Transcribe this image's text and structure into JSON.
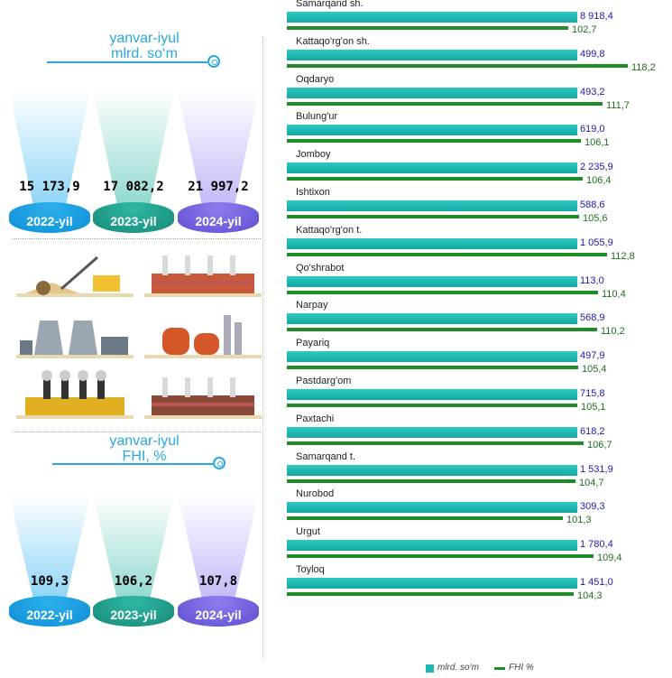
{
  "panels": {
    "top": {
      "title_line1": "yanvar-iyul",
      "title_line2": "mlrd. so‘m",
      "items": [
        {
          "year": "2022-yil",
          "value": "15 173,9"
        },
        {
          "year": "2023-yil",
          "value": "17 082,2"
        },
        {
          "year": "2024-yil",
          "value": "21 997,2"
        }
      ]
    },
    "bottom": {
      "title_line1": "yanvar-iyul",
      "title_line2": "FHI, %",
      "items": [
        {
          "year": "2022-yil",
          "value": "109,3"
        },
        {
          "year": "2023-yil",
          "value": "106,2"
        },
        {
          "year": "2024-yil",
          "value": "107,8"
        }
      ]
    }
  },
  "colors": {
    "bar_mlrd": "#1fb9b3",
    "bar_fhi": "#1f8c2a",
    "value_mlrd": "#1a1ab0",
    "value_fhi": "#1f6e1f",
    "accent": "#29a8e0"
  },
  "illustrations": [
    "excavator-icon",
    "factory-icon",
    "cooling-towers-icon",
    "refinery-icon",
    "smokestack-plant-icon",
    "industrial-plant-icon"
  ],
  "chart_data": {
    "type": "bar",
    "orientation": "horizontal",
    "categories": [
      "Samarqand sh.",
      "Kattaqo'rg'on sh.",
      "Oqdaryo",
      "Bulung'ur",
      "Jomboy",
      "Ishtixon",
      "Kattaqo'rg'on t.",
      "Qo'shrabot",
      "Narpay",
      "Payariq",
      "Pastdarg'om",
      "Paxtachi",
      "Samarqand t.",
      "Nurobod",
      "Urgut",
      "Toyloq"
    ],
    "series": [
      {
        "name": "mlrd. so‘m",
        "values": [
          8918.4,
          499.8,
          493.2,
          619.0,
          2235.9,
          588.6,
          1055.9,
          113.0,
          568.9,
          497.9,
          715.8,
          618.2,
          1531.9,
          309.3,
          1780.4,
          1451.0
        ],
        "labels": [
          "8 918,4",
          "499,8",
          "493,2",
          "619,0",
          "2 235,9",
          "588,6",
          "1 055,9",
          "113,0",
          "568,9",
          "497,9",
          "715,8",
          "618,2",
          "1 531,9",
          "309,3",
          "1 780,4",
          "1 451,0"
        ]
      },
      {
        "name": "FHI %",
        "values": [
          102.7,
          118.2,
          111.7,
          106.1,
          106.4,
          105.6,
          112.8,
          110.4,
          110.2,
          105.4,
          105.1,
          106.7,
          104.7,
          101.3,
          109.4,
          104.3
        ],
        "labels": [
          "102,7",
          "118,2",
          "111,7",
          "106,1",
          "106,4",
          "105,6",
          "112,8",
          "110,4",
          "110,2",
          "105,4",
          "105,1",
          "106,7",
          "104,7",
          "101,3",
          "109,4",
          "104,3"
        ]
      }
    ],
    "legend": {
      "position": "bottom-right",
      "items": [
        "mlrd. so‘m",
        "FHI %"
      ]
    }
  }
}
